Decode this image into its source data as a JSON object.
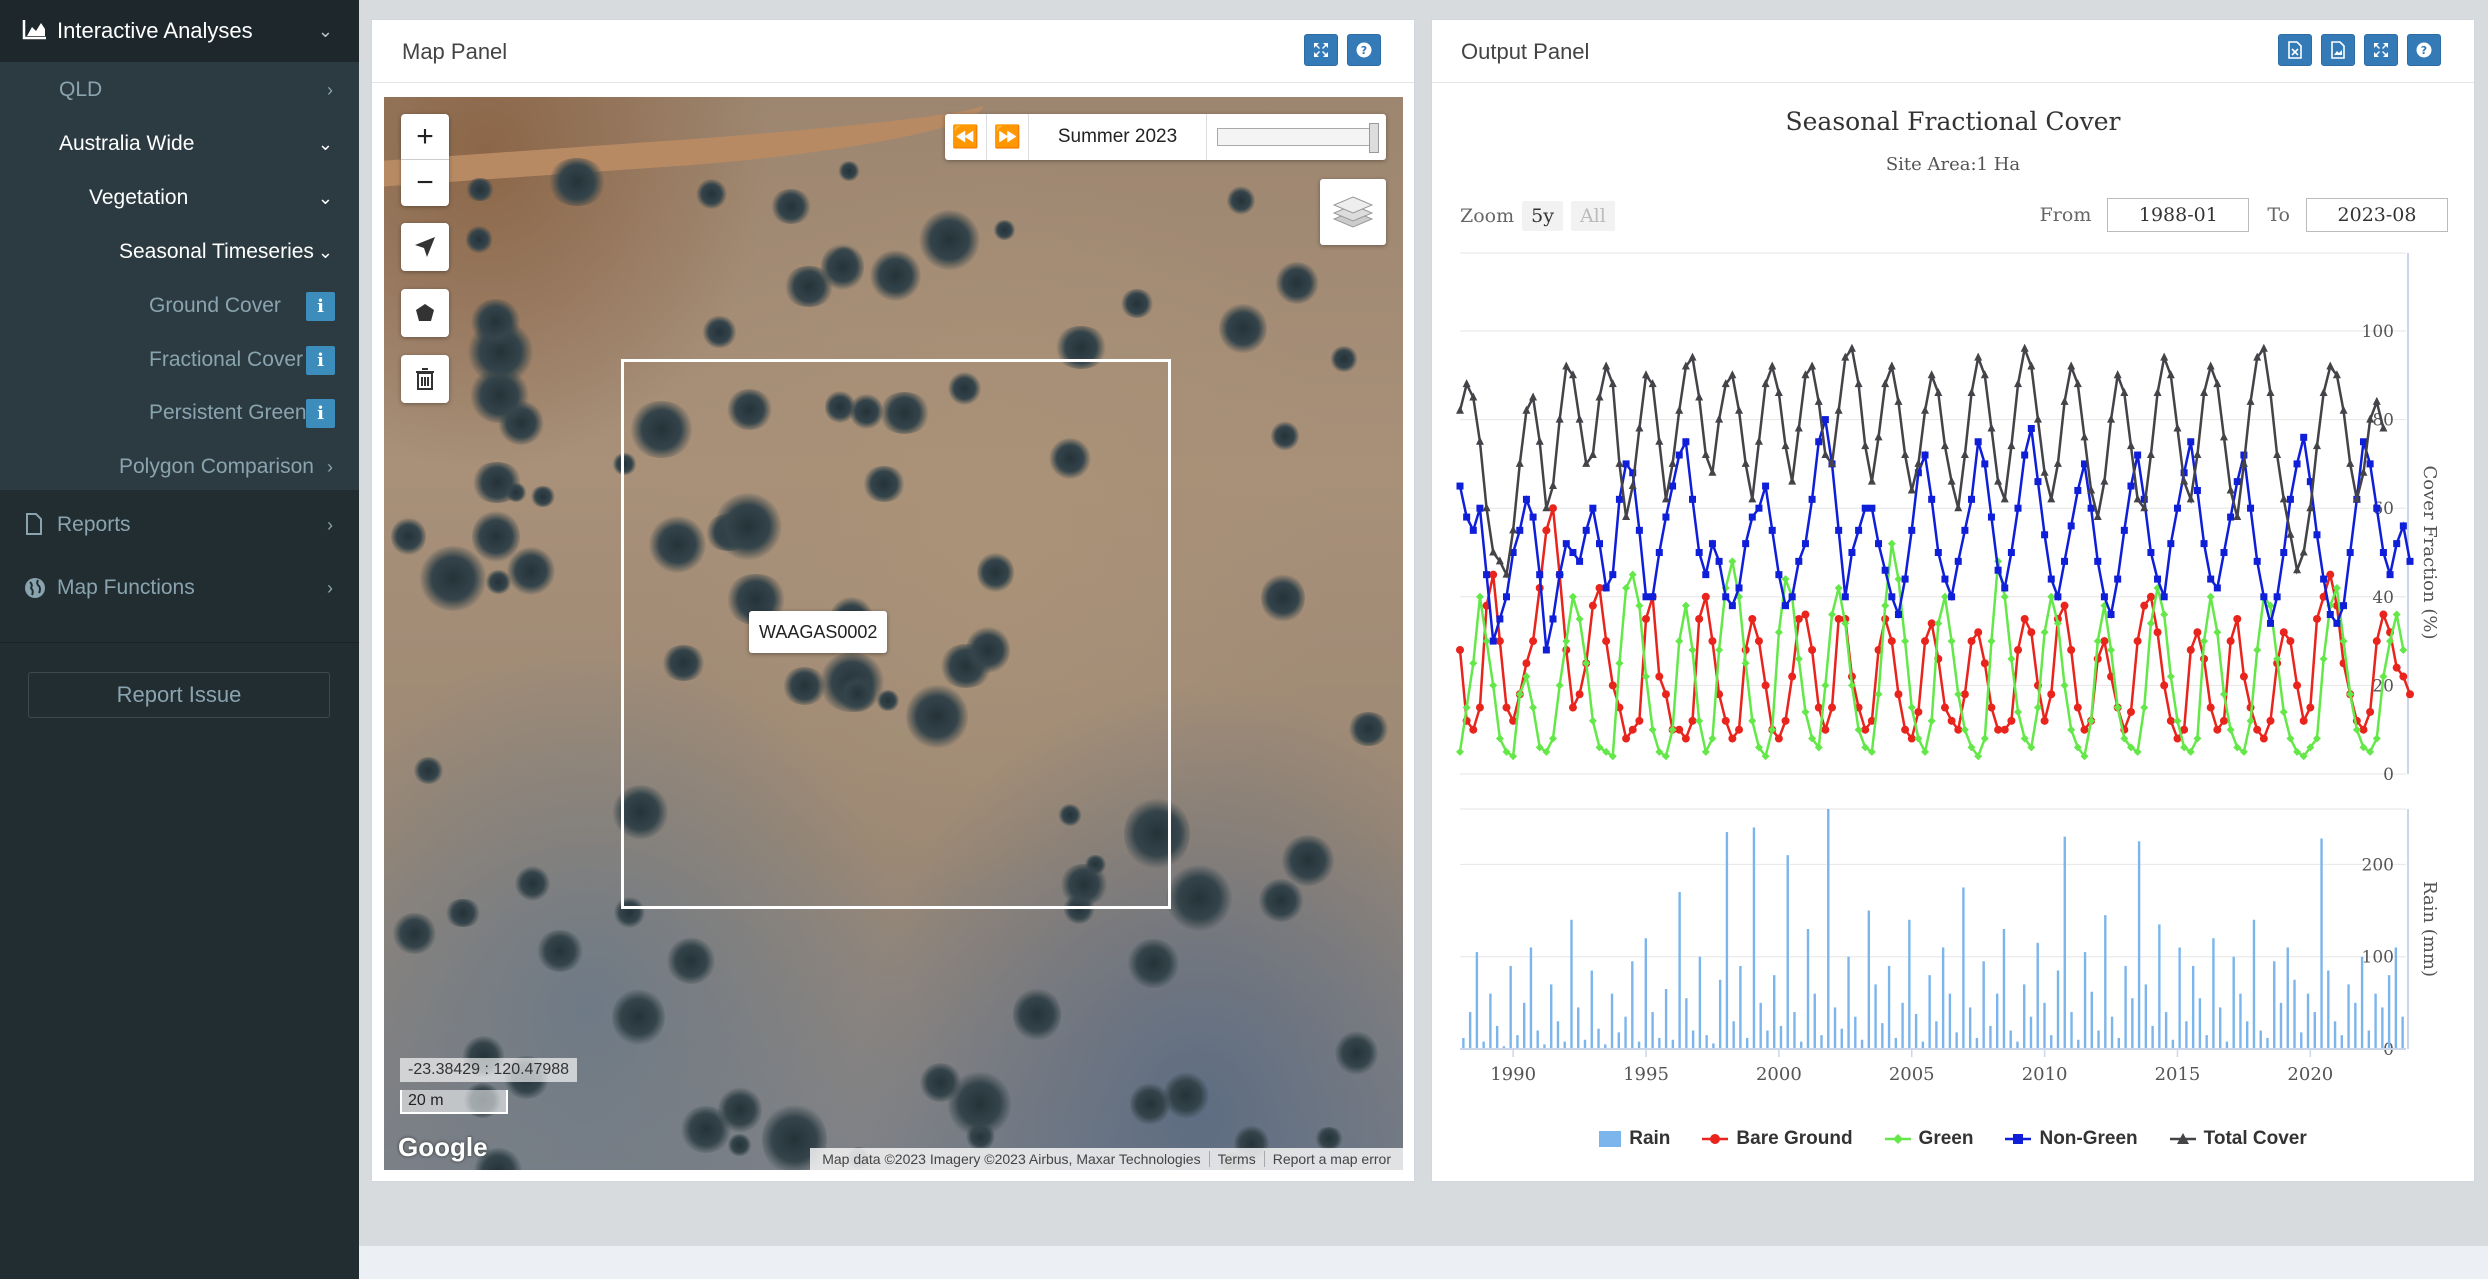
{
  "sidebar": {
    "items": [
      {
        "label": "Interactive Analyses"
      },
      {
        "label": "QLD"
      },
      {
        "label": "Australia Wide"
      },
      {
        "label": "Vegetation"
      },
      {
        "label": "Seasonal Timeseries"
      },
      {
        "label": "Ground Cover"
      },
      {
        "label": "Fractional Cover"
      },
      {
        "label": "Persistent Green"
      },
      {
        "label": "Polygon Comparison"
      },
      {
        "label": "Reports"
      },
      {
        "label": "Map Functions"
      }
    ],
    "report_issue": "Report Issue"
  },
  "map_panel": {
    "title": "Map Panel",
    "season_label": "Summer 2023",
    "site_tooltip": "WAAGAS0002",
    "coordinates": "-23.38429 : 120.47988",
    "scale": "20 m",
    "google_logo": "Google",
    "attribution": [
      "Map data ©2023 Imagery ©2023 Airbus, Maxar Technologies",
      "Terms",
      "Report a map error"
    ]
  },
  "output_panel": {
    "title": "Output Panel",
    "chart_title": "Seasonal Fractional Cover",
    "subtitle": "Site Area:1 Ha",
    "zoom_label": "Zoom",
    "zoom_options": [
      "5y",
      "All"
    ],
    "from_label": "From",
    "from_value": "1988-01",
    "to_label": "To",
    "to_value": "2023-08"
  },
  "colors": {
    "rain": "#7cb5ec",
    "bare_ground": "#e8241c",
    "green": "#64e849",
    "non_green": "#0f1ed8",
    "total_cover": "#434348",
    "sidebar_bg": "#222d32",
    "info_badge": "#3c8dbc"
  },
  "chart_data": [
    {
      "type": "line",
      "title": "Seasonal Fractional Cover",
      "subtitle": "Site Area:1 Ha",
      "ylabel": "Cover Fraction (%)",
      "ylim": [
        0,
        100
      ],
      "yticks": [
        0,
        20,
        40,
        60,
        80,
        100
      ],
      "xlim": [
        1988,
        2023.6
      ],
      "xticks": [
        1990,
        1995,
        2000,
        2005,
        2010,
        2015,
        2020
      ],
      "x_start": 1988.0,
      "x_step": 0.25,
      "series": [
        {
          "name": "Bare Ground",
          "values": [
            28,
            12,
            10,
            15,
            38,
            45,
            30,
            15,
            12,
            18,
            25,
            30,
            42,
            55,
            60,
            45,
            28,
            15,
            18,
            25,
            38,
            42,
            30,
            20,
            15,
            8,
            10,
            12,
            35,
            40,
            22,
            18,
            10,
            10,
            8,
            12,
            35,
            40,
            30,
            18,
            12,
            8,
            10,
            28,
            35,
            30,
            20,
            10,
            8,
            12,
            22,
            35,
            36,
            28,
            15,
            10,
            15,
            35,
            35,
            22,
            15,
            10,
            12,
            28,
            35,
            30,
            18,
            10,
            8,
            14,
            30,
            34,
            26,
            15,
            12,
            10,
            18,
            30,
            32,
            25,
            15,
            10,
            10,
            12,
            28,
            35,
            32,
            20,
            12,
            18,
            35,
            38,
            28,
            15,
            10,
            12,
            26,
            30,
            22,
            15,
            10,
            14,
            30,
            38,
            40,
            32,
            20,
            12,
            8,
            10,
            28,
            32,
            26,
            15,
            10,
            12,
            30,
            35,
            22,
            15,
            10,
            8,
            12,
            25,
            32,
            30,
            20,
            12,
            15,
            35,
            40,
            45,
            38,
            25,
            18,
            12,
            10,
            14,
            30,
            36,
            32,
            24,
            22,
            18
          ]
        },
        {
          "name": "Green",
          "values": [
            5,
            15,
            25,
            40,
            30,
            20,
            8,
            5,
            4,
            18,
            22,
            15,
            6,
            5,
            8,
            20,
            30,
            40,
            35,
            25,
            12,
            6,
            5,
            4,
            25,
            42,
            45,
            38,
            22,
            10,
            5,
            4,
            10,
            30,
            38,
            28,
            12,
            5,
            8,
            28,
            42,
            48,
            40,
            25,
            12,
            6,
            4,
            10,
            32,
            44,
            40,
            26,
            14,
            8,
            6,
            20,
            36,
            42,
            34,
            20,
            10,
            6,
            5,
            18,
            38,
            52,
            44,
            30,
            15,
            8,
            5,
            12,
            34,
            40,
            30,
            18,
            10,
            6,
            4,
            8,
            30,
            48,
            40,
            26,
            14,
            8,
            6,
            15,
            32,
            40,
            34,
            20,
            10,
            6,
            4,
            12,
            30,
            38,
            28,
            15,
            8,
            6,
            5,
            15,
            34,
            42,
            36,
            22,
            12,
            6,
            5,
            8,
            30,
            40,
            32,
            18,
            10,
            6,
            5,
            12,
            28,
            40,
            38,
            26,
            14,
            8,
            5,
            4,
            6,
            8,
            26,
            38,
            42,
            30,
            18,
            10,
            6,
            5,
            8,
            22,
            30,
            36,
            28
          ]
        },
        {
          "name": "Non-Green",
          "values": [
            65,
            58,
            55,
            60,
            45,
            30,
            35,
            40,
            50,
            55,
            62,
            58,
            45,
            28,
            35,
            45,
            52,
            50,
            48,
            55,
            60,
            52,
            42,
            45,
            62,
            70,
            68,
            55,
            40,
            40,
            50,
            58,
            65,
            72,
            75,
            62,
            50,
            45,
            52,
            48,
            40,
            38,
            42,
            52,
            58,
            60,
            65,
            55,
            45,
            38,
            40,
            48,
            52,
            62,
            75,
            80,
            70,
            55,
            40,
            50,
            55,
            60,
            60,
            52,
            46,
            40,
            36,
            44,
            55,
            68,
            72,
            62,
            50,
            44,
            40,
            48,
            55,
            62,
            75,
            70,
            58,
            46,
            42,
            50,
            60,
            72,
            78,
            66,
            54,
            44,
            40,
            48,
            56,
            64,
            70,
            60,
            48,
            40,
            36,
            44,
            55,
            65,
            72,
            62,
            50,
            44,
            40,
            52,
            60,
            68,
            75,
            64,
            52,
            44,
            42,
            50,
            58,
            66,
            72,
            60,
            48,
            40,
            34,
            40,
            50,
            62,
            70,
            76,
            66,
            54,
            44,
            36,
            34,
            38,
            50,
            62,
            75,
            70,
            60,
            50,
            45,
            52,
            56,
            48
          ]
        },
        {
          "name": "Total Cover",
          "values": [
            82,
            88,
            85,
            75,
            60,
            50,
            48,
            45,
            55,
            70,
            82,
            85,
            75,
            60,
            65,
            80,
            92,
            90,
            80,
            70,
            72,
            85,
            92,
            88,
            70,
            58,
            65,
            78,
            90,
            88,
            75,
            62,
            70,
            82,
            92,
            94,
            85,
            72,
            68,
            80,
            88,
            90,
            82,
            70,
            62,
            75,
            88,
            92,
            86,
            74,
            66,
            78,
            90,
            92,
            84,
            72,
            70,
            82,
            94,
            96,
            88,
            74,
            66,
            76,
            88,
            92,
            84,
            72,
            64,
            70,
            82,
            90,
            86,
            74,
            66,
            60,
            72,
            86,
            94,
            90,
            78,
            66,
            62,
            74,
            88,
            96,
            92,
            80,
            68,
            62,
            70,
            84,
            92,
            88,
            76,
            64,
            58,
            66,
            80,
            90,
            86,
            74,
            62,
            60,
            72,
            86,
            94,
            90,
            78,
            66,
            62,
            72,
            86,
            92,
            88,
            76,
            64,
            58,
            70,
            84,
            94,
            96,
            86,
            72,
            62,
            54,
            46,
            50,
            60,
            74,
            86,
            92,
            90,
            82,
            70,
            62,
            68,
            80,
            84,
            78
          ]
        }
      ]
    },
    {
      "type": "bar",
      "ylabel": "Rain (mm)",
      "ylim": [
        0,
        260
      ],
      "yticks": [
        0,
        100,
        200
      ],
      "xlim": [
        1988,
        2023.6
      ],
      "xticks": [
        1990,
        1995,
        2000,
        2005,
        2010,
        2015,
        2020
      ],
      "series": [
        {
          "name": "Rain",
          "values": [
            12,
            40,
            105,
            8,
            60,
            25,
            3,
            90,
            15,
            50,
            110,
            20,
            5,
            70,
            30,
            8,
            140,
            45,
            10,
            85,
            22,
            5,
            60,
            18,
            35,
            95,
            8,
            120,
            40,
            12,
            65,
            10,
            170,
            55,
            20,
            100,
            15,
            6,
            75,
            235,
            30,
            90,
            12,
            240,
            50,
            20,
            80,
            25,
            210,
            40,
            8,
            130,
            60,
            15,
            260,
            45,
            22,
            100,
            35,
            10,
            150,
            70,
            28,
            90,
            12,
            50,
            140,
            38,
            8,
            80,
            30,
            110,
            60,
            18,
            175,
            45,
            12,
            95,
            25,
            60,
            130,
            20,
            8,
            70,
            35,
            115,
            50,
            15,
            85,
            230,
            40,
            10,
            105,
            62,
            20,
            145,
            35,
            12,
            90,
            55,
            225,
            70,
            25,
            135,
            40,
            10,
            110,
            30,
            90,
            55,
            15,
            120,
            45,
            8,
            100,
            60,
            30,
            140,
            20,
            12,
            95,
            50,
            110,
            75,
            18,
            60,
            40,
            228,
            85,
            30,
            15,
            70,
            50,
            100,
            20,
            60,
            45,
            80,
            110,
            35
          ]
        }
      ]
    }
  ]
}
